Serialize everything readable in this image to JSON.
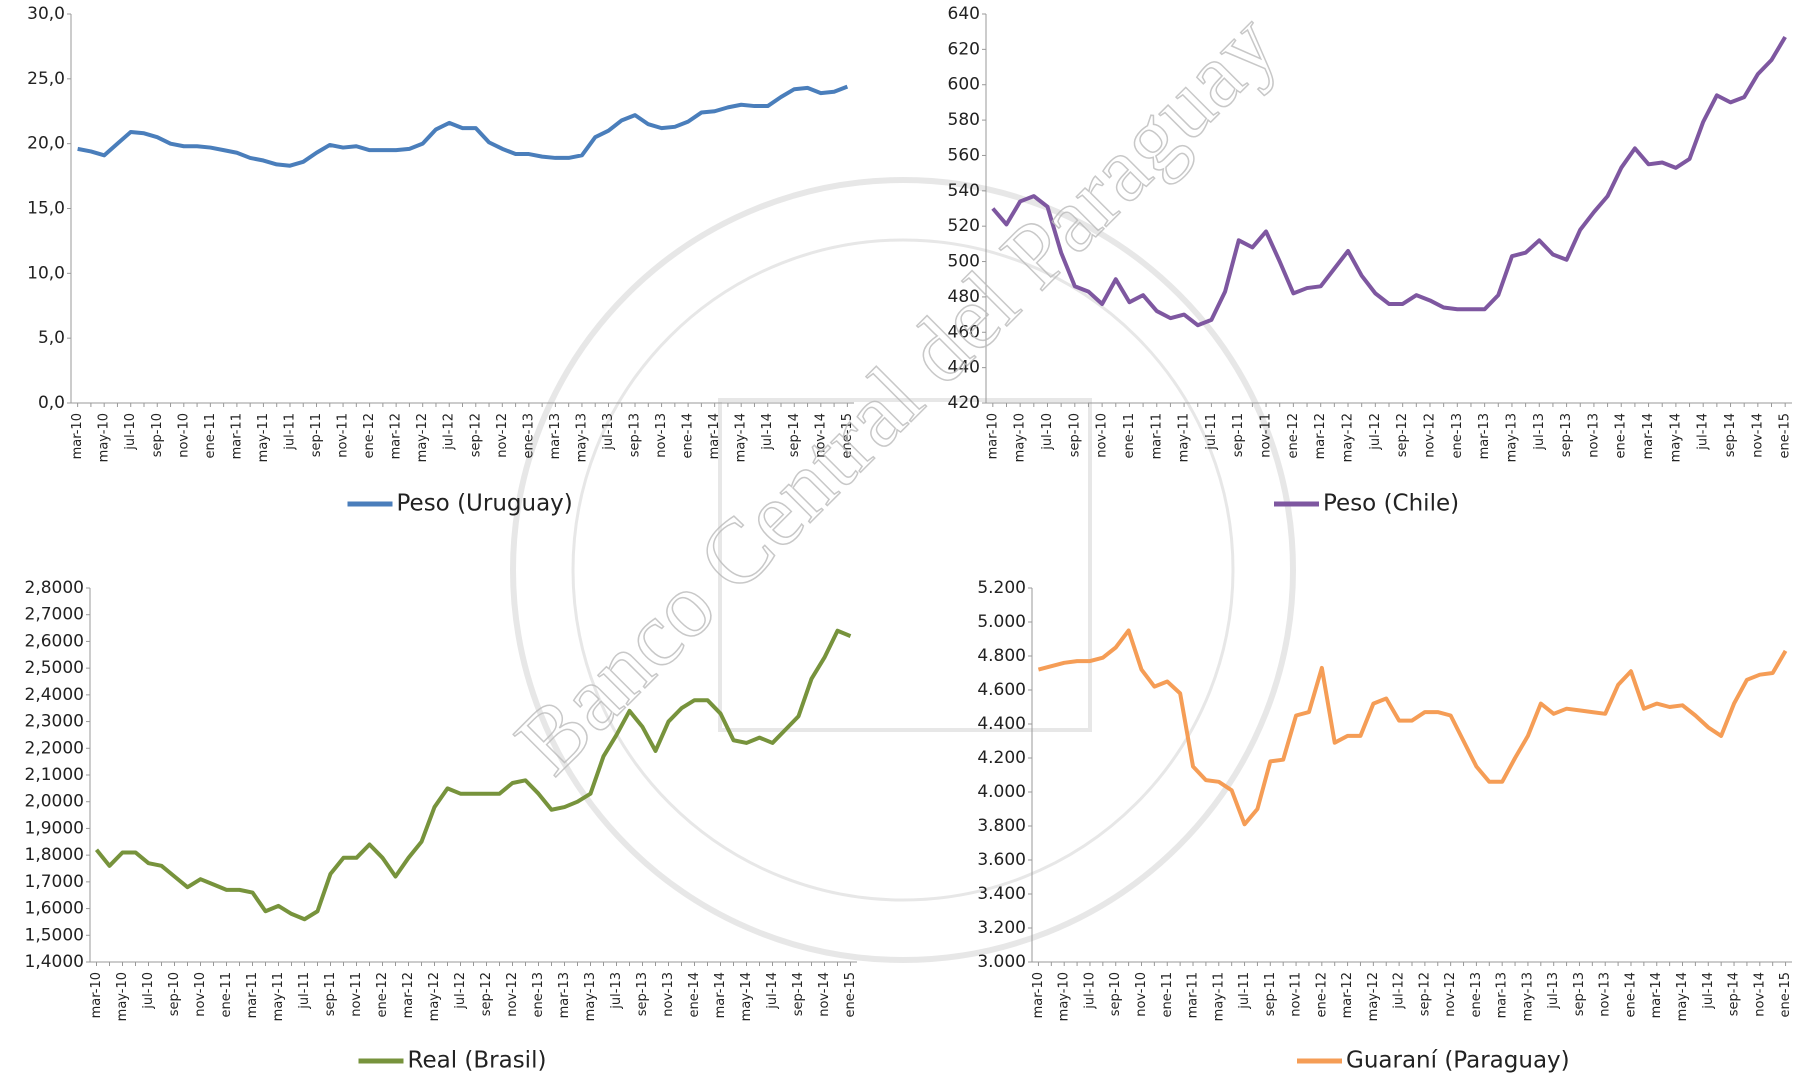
{
  "watermark": "Banco Central del Paraguay",
  "chart_data": [
    {
      "type": "line",
      "categories": [
        "mar-10",
        null,
        "may-10",
        null,
        "jul-10",
        null,
        "sep-10",
        null,
        "nov-10",
        null,
        "ene-11",
        null,
        "mar-11",
        null,
        "may-11",
        null,
        "jul-11",
        null,
        "sep-11",
        null,
        "nov-11",
        null,
        "ene-12",
        null,
        "mar-12",
        null,
        "may-12",
        null,
        "jul-12",
        null,
        "sep-12",
        null,
        "nov-12",
        null,
        "ene-13",
        null,
        "mar-13",
        null,
        "may-13",
        null,
        "jul-13",
        null,
        "sep-13",
        null,
        "nov-13",
        null,
        "ene-14",
        null,
        "mar-14",
        null,
        "may-14",
        null,
        "jul-14",
        null,
        "sep-14",
        null,
        "nov-14",
        null,
        "ene-15"
      ],
      "series": [
        {
          "name": "Peso (Uruguay)",
          "color": "#4a7ebb",
          "values": [
            19.6,
            19.4,
            19.1,
            20.0,
            20.9,
            20.8,
            20.5,
            20.0,
            19.8,
            19.8,
            19.7,
            19.5,
            19.3,
            18.9,
            18.7,
            18.4,
            18.3,
            18.6,
            19.3,
            19.9,
            19.7,
            19.8,
            19.5,
            19.5,
            19.5,
            19.6,
            20.0,
            21.1,
            21.6,
            21.2,
            21.2,
            20.1,
            19.6,
            19.2,
            19.2,
            19.0,
            18.9,
            18.9,
            19.1,
            20.5,
            21.0,
            21.8,
            22.2,
            21.5,
            21.2,
            21.3,
            21.7,
            22.4,
            22.5,
            22.8,
            23.0,
            22.9,
            22.9,
            23.6,
            24.2,
            24.3,
            23.9,
            24.0,
            24.4
          ]
        }
      ],
      "ylim": [
        0,
        30
      ],
      "yticks": [
        {
          "value": 0,
          "label": "0,0"
        },
        {
          "value": 5,
          "label": "5,0"
        },
        {
          "value": 10,
          "label": "10,0"
        },
        {
          "value": 15,
          "label": "15,0"
        },
        {
          "value": 20,
          "label": "20,0"
        },
        {
          "value": 25,
          "label": "25,0"
        },
        {
          "value": 30,
          "label": "30,0"
        }
      ]
    },
    {
      "type": "line",
      "categories": [
        "mar-10",
        null,
        "may-10",
        null,
        "jul-10",
        null,
        "sep-10",
        null,
        "nov-10",
        null,
        "ene-11",
        null,
        "mar-11",
        null,
        "may-11",
        null,
        "jul-11",
        null,
        "sep-11",
        null,
        "nov-11",
        null,
        "ene-12",
        null,
        "mar-12",
        null,
        "may-12",
        null,
        "jul-12",
        null,
        "sep-12",
        null,
        "nov-12",
        null,
        "ene-13",
        null,
        "mar-13",
        null,
        "may-13",
        null,
        "jul-13",
        null,
        "sep-13",
        null,
        "nov-13",
        null,
        "ene-14",
        null,
        "mar-14",
        null,
        "may-14",
        null,
        "jul-14",
        null,
        "sep-14",
        null,
        "nov-14",
        null,
        "ene-15"
      ],
      "series": [
        {
          "name": "Peso (Chile)",
          "color": "#7e57a0",
          "values": [
            530,
            521,
            534,
            537,
            531,
            505,
            486,
            483,
            476,
            490,
            477,
            481,
            472,
            468,
            470,
            464,
            467,
            483,
            512,
            508,
            517,
            500,
            482,
            485,
            486,
            496,
            506,
            492,
            482,
            476,
            476,
            481,
            478,
            474,
            473,
            473,
            473,
            481,
            503,
            505,
            512,
            504,
            501,
            518,
            528,
            537,
            553,
            564,
            555,
            556,
            553,
            558,
            579,
            594,
            590,
            593,
            606,
            614,
            627
          ]
        }
      ],
      "ylim": [
        420,
        640
      ],
      "yticks": [
        420,
        440,
        460,
        480,
        500,
        520,
        540,
        560,
        580,
        600,
        620,
        640
      ]
    },
    {
      "type": "line",
      "categories": [
        "mar-10",
        null,
        "may-10",
        null,
        "jul-10",
        null,
        "sep-10",
        null,
        "nov-10",
        null,
        "ene-11",
        null,
        "mar-11",
        null,
        "may-11",
        null,
        "jul-11",
        null,
        "sep-11",
        null,
        "nov-11",
        null,
        "ene-12",
        null,
        "mar-12",
        null,
        "may-12",
        null,
        "jul-12",
        null,
        "sep-12",
        null,
        "nov-12",
        null,
        "ene-13",
        null,
        "mar-13",
        null,
        "may-13",
        null,
        "jul-13",
        null,
        "sep-13",
        null,
        "nov-13",
        null,
        "ene-14",
        null,
        "mar-14",
        null,
        "may-14",
        null,
        "jul-14",
        null,
        "sep-14",
        null,
        "nov-14",
        null,
        "ene-15"
      ],
      "series": [
        {
          "name": "Real (Brasil)",
          "color": "#77933c",
          "values": [
            1.82,
            1.76,
            1.81,
            1.81,
            1.77,
            1.76,
            1.72,
            1.68,
            1.71,
            1.69,
            1.67,
            1.67,
            1.66,
            1.59,
            1.61,
            1.58,
            1.56,
            1.59,
            1.73,
            1.79,
            1.79,
            1.84,
            1.79,
            1.72,
            1.79,
            1.85,
            1.98,
            2.05,
            2.03,
            2.03,
            2.03,
            2.03,
            2.07,
            2.08,
            2.03,
            1.97,
            1.98,
            2.0,
            2.03,
            2.17,
            2.25,
            2.34,
            2.28,
            2.19,
            2.3,
            2.35,
            2.38,
            2.38,
            2.33,
            2.23,
            2.22,
            2.24,
            2.22,
            2.27,
            2.32,
            2.46,
            2.54,
            2.64,
            2.62
          ]
        }
      ],
      "ylim": [
        1.4,
        2.8
      ],
      "yticks": [
        {
          "value": 1.4,
          "label": "1,4000"
        },
        {
          "value": 1.5,
          "label": "1,5000"
        },
        {
          "value": 1.6,
          "label": "1,6000"
        },
        {
          "value": 1.7,
          "label": "1,7000"
        },
        {
          "value": 1.8,
          "label": "1,8000"
        },
        {
          "value": 1.9,
          "label": "1,9000"
        },
        {
          "value": 2.0,
          "label": "2,0000"
        },
        {
          "value": 2.1,
          "label": "2,1000"
        },
        {
          "value": 2.2,
          "label": "2,2000"
        },
        {
          "value": 2.3,
          "label": "2,3000"
        },
        {
          "value": 2.4,
          "label": "2,4000"
        },
        {
          "value": 2.5,
          "label": "2,5000"
        },
        {
          "value": 2.6,
          "label": "2,6000"
        },
        {
          "value": 2.7,
          "label": "2,7000"
        },
        {
          "value": 2.8,
          "label": "2,8000"
        }
      ]
    },
    {
      "type": "line",
      "categories": [
        "mar-10",
        null,
        "may-10",
        null,
        "jul-10",
        null,
        "sep-10",
        null,
        "nov-10",
        null,
        "ene-11",
        null,
        "mar-11",
        null,
        "may-11",
        null,
        "jul-11",
        null,
        "sep-11",
        null,
        "nov-11",
        null,
        "ene-12",
        null,
        "mar-12",
        null,
        "may-12",
        null,
        "jul-12",
        null,
        "sep-12",
        null,
        "nov-12",
        null,
        "ene-13",
        null,
        "mar-13",
        null,
        "may-13",
        null,
        "jul-13",
        null,
        "sep-13",
        null,
        "nov-13",
        null,
        "ene-14",
        null,
        "mar-14",
        null,
        "may-14",
        null,
        "jul-14",
        null,
        "sep-14",
        null,
        "nov-14",
        null,
        "ene-15"
      ],
      "series": [
        {
          "name": "Guaraní (Paraguay)",
          "color": "#f59d56",
          "values": [
            4720,
            4740,
            4760,
            4770,
            4770,
            4790,
            4850,
            4950,
            4720,
            4620,
            4650,
            4580,
            4150,
            4070,
            4060,
            4010,
            3810,
            3900,
            4180,
            4190,
            4450,
            4470,
            4730,
            4290,
            4330,
            4330,
            4520,
            4550,
            4420,
            4420,
            4470,
            4470,
            4450,
            4300,
            4150,
            4060,
            4060,
            4200,
            4330,
            4520,
            4460,
            4490,
            4480,
            4470,
            4460,
            4630,
            4710,
            4490,
            4520,
            4500,
            4510,
            4450,
            4380,
            4330,
            4520,
            4660,
            4690,
            4700,
            4830
          ]
        }
      ],
      "ylim": [
        3000,
        5200
      ],
      "yticks": [
        {
          "value": 3000,
          "label": "3.000"
        },
        {
          "value": 3200,
          "label": "3.200"
        },
        {
          "value": 3400,
          "label": "3.400"
        },
        {
          "value": 3600,
          "label": "3.600"
        },
        {
          "value": 3800,
          "label": "3.800"
        },
        {
          "value": 4000,
          "label": "4.000"
        },
        {
          "value": 4200,
          "label": "4.200"
        },
        {
          "value": 4400,
          "label": "4.400"
        },
        {
          "value": 4600,
          "label": "4.600"
        },
        {
          "value": 4800,
          "label": "4.800"
        },
        {
          "value": 5000,
          "label": "5.000"
        },
        {
          "value": 5200,
          "label": "5.200"
        }
      ]
    }
  ]
}
